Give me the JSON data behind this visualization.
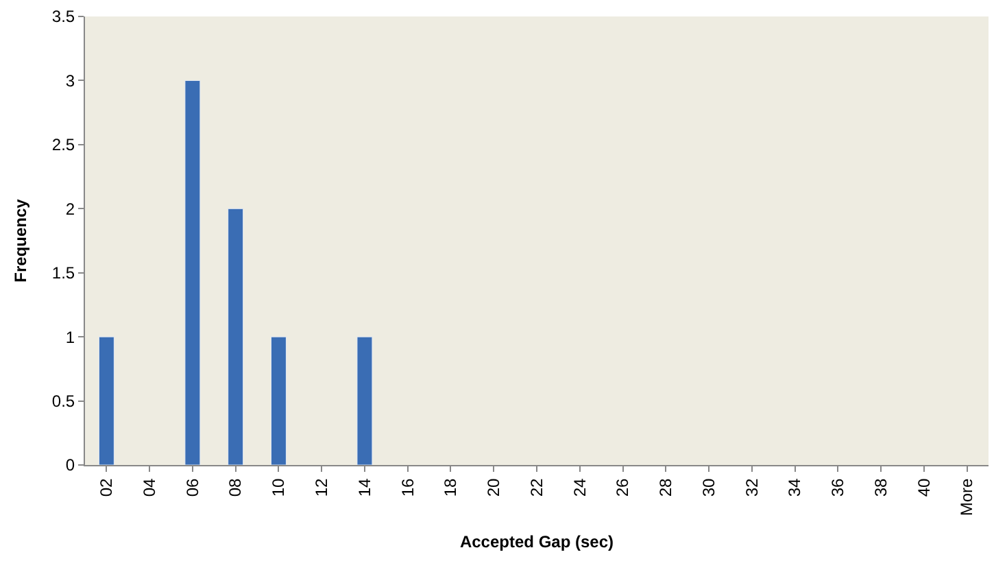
{
  "chart_data": {
    "type": "bar",
    "xlabel": "Accepted Gap (sec)",
    "ylabel": "Frequency",
    "categories": [
      "02",
      "04",
      "06",
      "08",
      "10",
      "12",
      "14",
      "16",
      "18",
      "20",
      "22",
      "24",
      "26",
      "28",
      "30",
      "32",
      "34",
      "36",
      "38",
      "40",
      "More"
    ],
    "values": [
      1,
      null,
      3,
      2,
      1,
      null,
      1,
      null,
      null,
      null,
      null,
      null,
      null,
      null,
      null,
      null,
      null,
      null,
      null,
      null,
      null
    ],
    "color": "#3a6db4",
    "ylim": [
      0,
      3.5
    ],
    "yticks": [
      0,
      0.5,
      1,
      1.5,
      2,
      2.5,
      3,
      3.5
    ],
    "grid": false,
    "legend": false
  }
}
